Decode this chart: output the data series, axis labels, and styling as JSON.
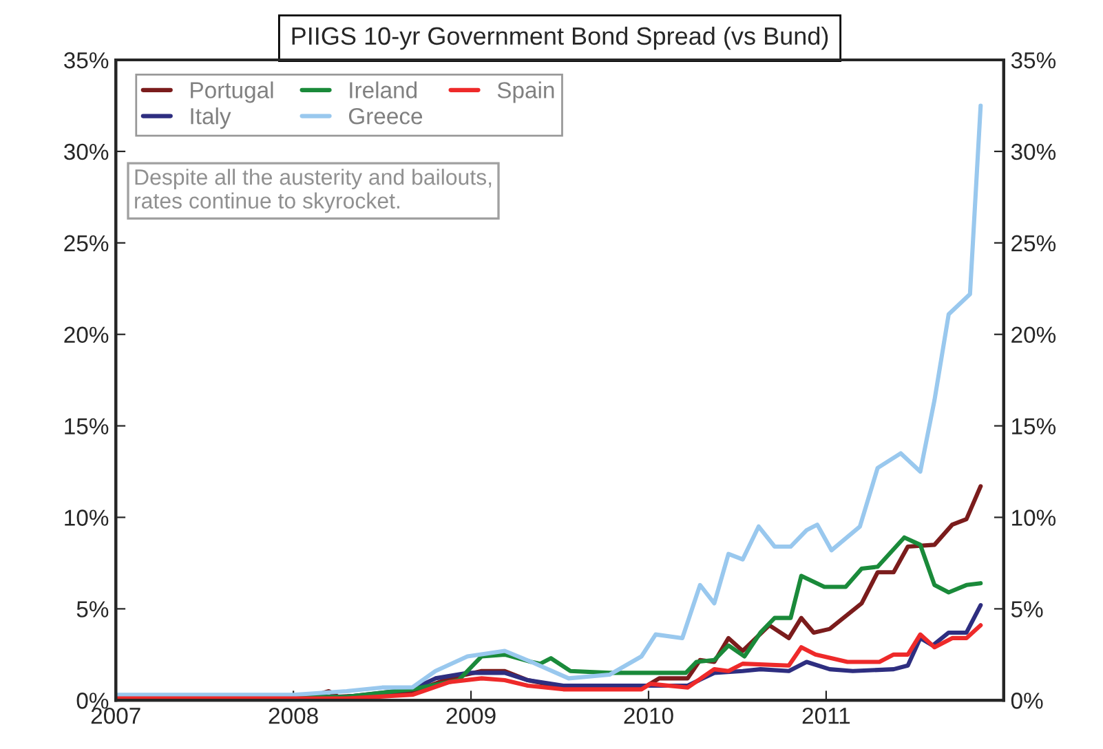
{
  "chart_data": {
    "type": "line",
    "title": "PIIGS 10-yr Government Bond Spread (vs Bund)",
    "annotations": [
      "Despite all the austerity and bailouts,\nrates continue to skyrocket."
    ],
    "xlim": [
      2007,
      2012
    ],
    "xticks": [
      2007,
      2008,
      2009,
      2010,
      2011
    ],
    "ylim": [
      0,
      35
    ],
    "yticks": [
      {
        "value": 0,
        "label": "0%"
      },
      {
        "value": 5,
        "label": "5%"
      },
      {
        "value": 10,
        "label": "10%"
      },
      {
        "value": 15,
        "label": "15%"
      },
      {
        "value": 20,
        "label": "20%"
      },
      {
        "value": 25,
        "label": "25%"
      },
      {
        "value": 30,
        "label": "30%"
      },
      {
        "value": 35,
        "label": "35%"
      }
    ],
    "y2lim": [
      0,
      35
    ],
    "y2ticks": [
      {
        "value": 0,
        "label": "0%"
      },
      {
        "value": 5,
        "label": "5%"
      },
      {
        "value": 10,
        "label": "10%"
      },
      {
        "value": 15,
        "label": "15%"
      },
      {
        "value": 20,
        "label": "20%"
      },
      {
        "value": 25,
        "label": "25%"
      },
      {
        "value": 30,
        "label": "30%"
      },
      {
        "value": 35,
        "label": "35%"
      }
    ],
    "legend": "top left",
    "grid": false,
    "series": [
      {
        "name": "Portugal",
        "color": "#7b1c1c",
        "x": [
          2007.0,
          2008.1,
          2008.2,
          2008.25,
          2008.5,
          2008.67,
          2008.88,
          2009.06,
          2009.19,
          2009.32,
          2009.52,
          2009.99,
          2010.06,
          2010.22,
          2010.29,
          2010.37,
          2010.45,
          2010.53,
          2010.68,
          2010.79,
          2010.86,
          2010.93,
          2011.02,
          2011.2,
          2011.29,
          2011.38,
          2011.46,
          2011.61,
          2011.71,
          2011.79,
          2011.87
        ],
        "values": [
          0.2,
          0.2,
          0.5,
          0.2,
          0.3,
          0.46,
          1.2,
          1.6,
          1.6,
          1.1,
          0.7,
          0.8,
          1.2,
          1.2,
          2.2,
          2.1,
          3.4,
          2.7,
          4.1,
          3.4,
          4.5,
          3.7,
          3.9,
          5.3,
          7.0,
          7.0,
          8.4,
          8.5,
          9.6,
          9.9,
          11.7
        ]
      },
      {
        "name": "Italy",
        "color": "#2e2e80",
        "x": [
          2007.0,
          2008.3,
          2008.67,
          2008.8,
          2008.98,
          2009.19,
          2009.32,
          2009.52,
          2009.99,
          2010.22,
          2010.37,
          2010.53,
          2010.63,
          2010.79,
          2010.89,
          2011.02,
          2011.15,
          2011.38,
          2011.46,
          2011.53,
          2011.6,
          2011.69,
          2011.79,
          2011.87
        ],
        "values": [
          0.2,
          0.2,
          0.6,
          1.2,
          1.5,
          1.5,
          1.1,
          0.8,
          0.8,
          0.8,
          1.5,
          1.6,
          1.7,
          1.6,
          2.1,
          1.7,
          1.6,
          1.7,
          1.9,
          3.4,
          3.0,
          3.7,
          3.7,
          5.2
        ]
      },
      {
        "name": "Ireland",
        "color": "#1a8a3a",
        "x": [
          2007.0,
          2008.3,
          2008.67,
          2008.93,
          2009.06,
          2009.19,
          2009.34,
          2009.39,
          2009.45,
          2009.56,
          2009.78,
          2010.01,
          2010.21,
          2010.27,
          2010.37,
          2010.45,
          2010.54,
          2010.63,
          2010.71,
          2010.8,
          2010.86,
          2010.99,
          2011.11,
          2011.2,
          2011.29,
          2011.44,
          2011.53,
          2011.61,
          2011.69,
          2011.79,
          2011.87
        ],
        "values": [
          0.1,
          0.2,
          0.6,
          1.1,
          2.4,
          2.5,
          2.1,
          2.0,
          2.3,
          1.6,
          1.5,
          1.5,
          1.5,
          2.1,
          2.2,
          3.0,
          2.4,
          3.7,
          4.5,
          4.5,
          6.8,
          6.2,
          6.2,
          7.2,
          7.3,
          8.9,
          8.5,
          6.3,
          5.9,
          6.3,
          6.4
        ]
      },
      {
        "name": "Greece",
        "color": "#99c8ee",
        "x": [
          2007.0,
          2008.0,
          2008.3,
          2008.5,
          2008.67,
          2008.8,
          2008.98,
          2009.19,
          2009.34,
          2009.55,
          2009.78,
          2009.96,
          2010.04,
          2010.19,
          2010.29,
          2010.37,
          2010.45,
          2010.53,
          2010.62,
          2010.71,
          2010.8,
          2010.89,
          2010.95,
          2011.03,
          2011.19,
          2011.29,
          2011.42,
          2011.53,
          2011.61,
          2011.69,
          2011.81,
          2011.87
        ],
        "values": [
          0.3,
          0.3,
          0.5,
          0.7,
          0.71,
          1.6,
          2.4,
          2.7,
          2.1,
          1.2,
          1.4,
          2.4,
          3.6,
          3.4,
          6.3,
          5.3,
          8.0,
          7.7,
          9.5,
          8.4,
          8.4,
          9.3,
          9.6,
          8.2,
          9.5,
          12.7,
          13.5,
          12.5,
          16.4,
          21.1,
          22.2,
          32.5
        ]
      },
      {
        "name": "Spain",
        "color": "#ee2a2a",
        "x": [
          2007.0,
          2008.3,
          2008.67,
          2008.88,
          2009.06,
          2009.19,
          2009.32,
          2009.52,
          2009.96,
          2010.01,
          2010.22,
          2010.37,
          2010.45,
          2010.53,
          2010.79,
          2010.86,
          2010.94,
          2011.12,
          2011.3,
          2011.38,
          2011.46,
          2011.53,
          2011.61,
          2011.71,
          2011.79,
          2011.87
        ],
        "values": [
          0.1,
          0.1,
          0.3,
          1.0,
          1.2,
          1.1,
          0.8,
          0.6,
          0.6,
          0.9,
          0.7,
          1.7,
          1.6,
          2.0,
          1.9,
          2.9,
          2.5,
          2.1,
          2.1,
          2.5,
          2.5,
          3.6,
          2.9,
          3.4,
          3.4,
          4.1
        ]
      }
    ]
  }
}
